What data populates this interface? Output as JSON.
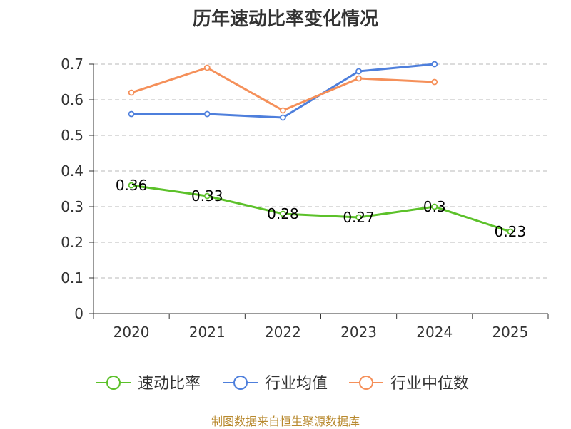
{
  "title": "历年速动比率变化情况",
  "source": "制图数据来自恒生聚源数据库",
  "colors": {
    "series_0": "#5cc12a",
    "series_1": "#4e7fdc",
    "series_2": "#f5905a",
    "grid": "#c8c8c8",
    "axis": "#333333",
    "text": "#333333"
  },
  "chart_data": {
    "type": "line",
    "title": "历年速动比率变化情况",
    "xlabel": "",
    "ylabel": "",
    "categories": [
      "2020",
      "2021",
      "2022",
      "2023",
      "2024",
      "2025"
    ],
    "y_ticks": [
      "0",
      "0.1",
      "0.2",
      "0.3",
      "0.4",
      "0.5",
      "0.6",
      "0.7"
    ],
    "ylim": [
      0,
      0.7
    ],
    "grid": true,
    "legend_position": "bottom",
    "series": [
      {
        "name": "速动比率",
        "values": [
          0.36,
          0.33,
          0.28,
          0.27,
          0.3,
          0.23
        ],
        "labels": [
          "0.36",
          "0.33",
          "0.28",
          "0.27",
          "0.3",
          "0.23"
        ],
        "show_labels": true
      },
      {
        "name": "行业均值",
        "values": [
          0.56,
          0.56,
          0.55,
          0.68,
          0.7,
          null
        ],
        "show_labels": false
      },
      {
        "name": "行业中位数",
        "values": [
          0.62,
          0.69,
          0.57,
          0.66,
          0.65,
          null
        ],
        "show_labels": false
      }
    ]
  }
}
